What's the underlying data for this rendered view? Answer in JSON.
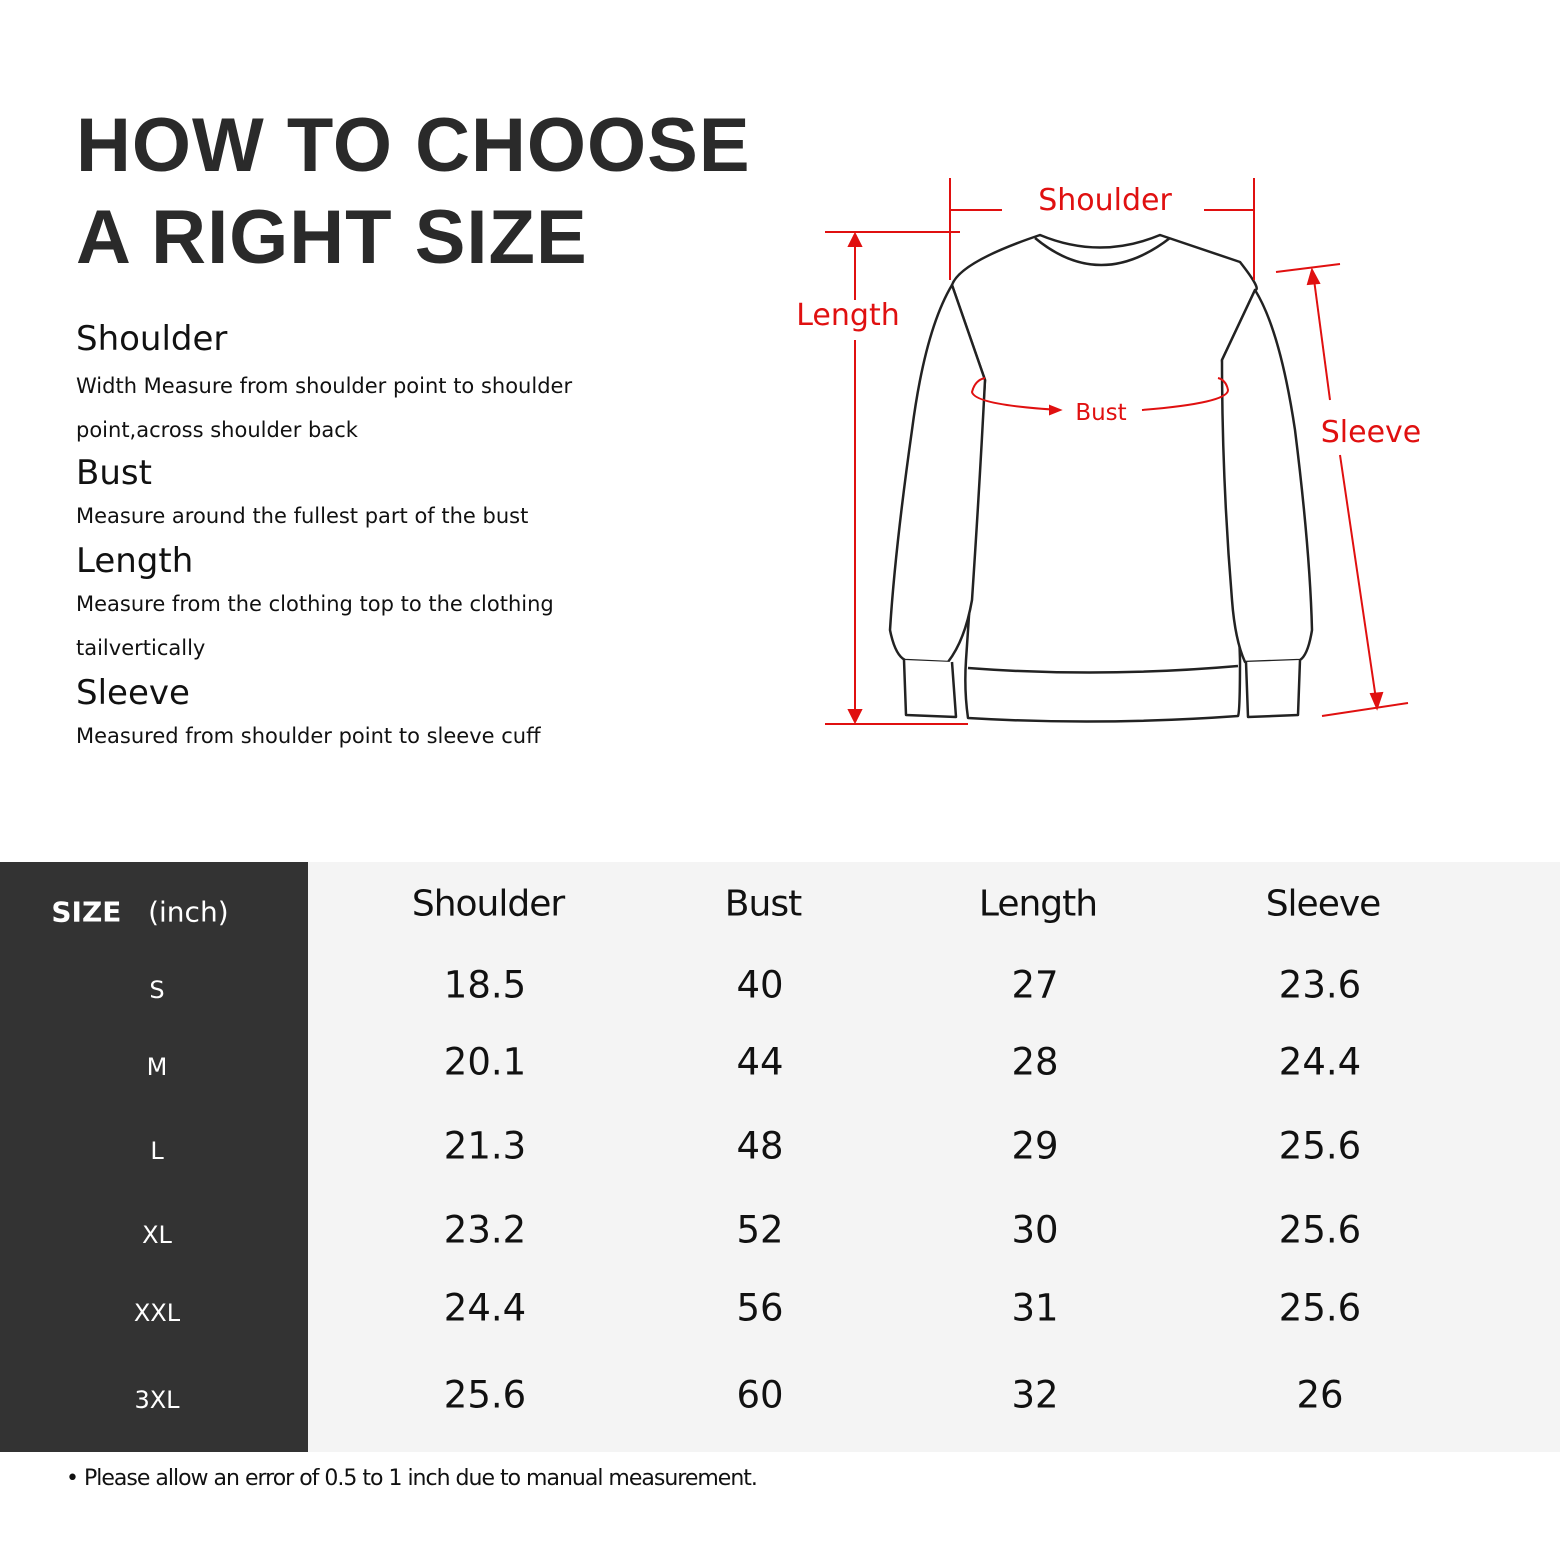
{
  "title": [
    "HOW TO CHOOSE",
    "A RIGHT SIZE"
  ],
  "sections": [
    {
      "heading": "Shoulder",
      "text": "Width Measure from shoulder point to shoulder point,across shoulder back"
    },
    {
      "heading": "Bust",
      "text": "Measure around the fullest part of the bust"
    },
    {
      "heading": "Length",
      "text": "Measure from the clothing top to the clothing tailvertically"
    },
    {
      "heading": "Sleeve",
      "text": "Measured from shoulder point to sleeve cuff"
    }
  ],
  "diagram": {
    "labels": {
      "shoulder": "Shoulder",
      "length": "Length",
      "bust": "Bust",
      "sleeve": "Sleeve"
    },
    "accent_color": "#e01010"
  },
  "table": {
    "size_header": "SIZE",
    "unit": "(inch)",
    "columns": [
      "Shoulder",
      "Bust",
      "Length",
      "Sleeve"
    ],
    "rows": [
      {
        "size": "S",
        "values": [
          "18.5",
          "40",
          "27",
          "23.6"
        ]
      },
      {
        "size": "M",
        "values": [
          "20.1",
          "44",
          "28",
          "24.4"
        ]
      },
      {
        "size": "L",
        "values": [
          "21.3",
          "48",
          "29",
          "25.6"
        ]
      },
      {
        "size": "XL",
        "values": [
          "23.2",
          "52",
          "30",
          "25.6"
        ]
      },
      {
        "size": "XXL",
        "values": [
          "24.4",
          "56",
          "31",
          "25.6"
        ]
      },
      {
        "size": "3XL",
        "values": [
          "25.6",
          "60",
          "32",
          "26"
        ]
      }
    ]
  },
  "footnote": "Please allow an error of 0.5 to 1 inch due to manual measurement."
}
